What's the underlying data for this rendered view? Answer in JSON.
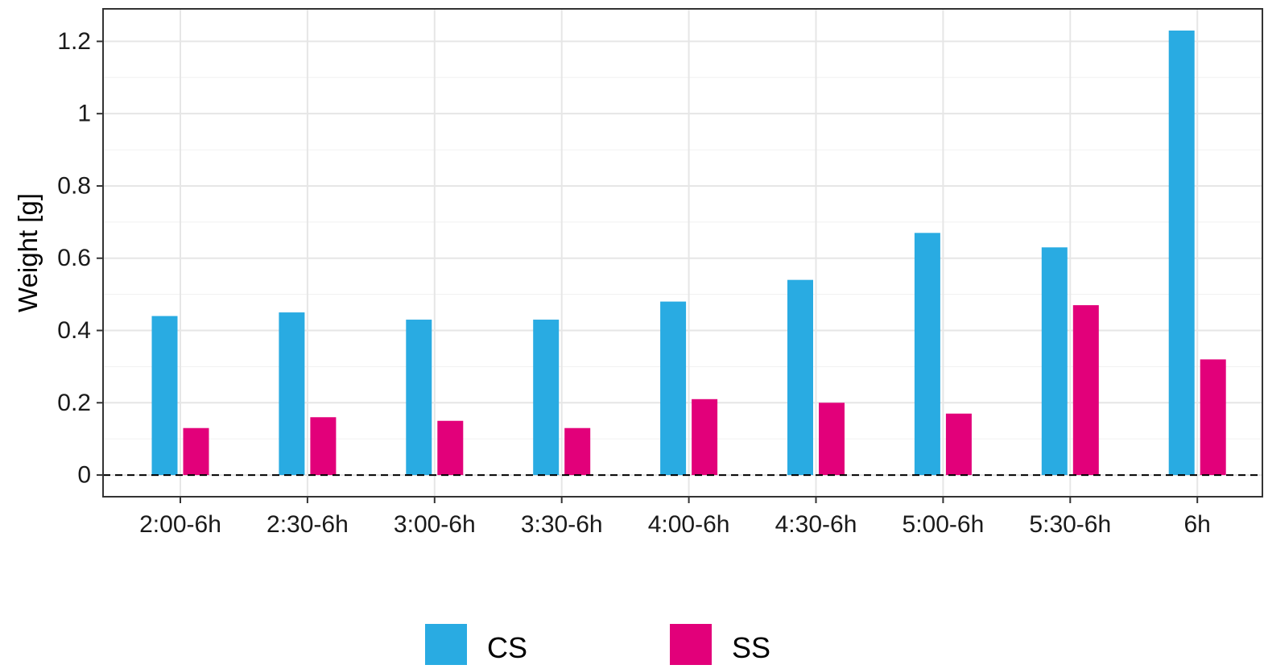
{
  "chart_data": {
    "type": "bar",
    "title": "",
    "xlabel": "",
    "ylabel": "Weight [g]",
    "categories": [
      "2:00-6h",
      "2:30-6h",
      "3:00-6h",
      "3:30-6h",
      "4:00-6h",
      "4:30-6h",
      "5:00-6h",
      "5:30-6h",
      "6h"
    ],
    "series": [
      {
        "name": "CS",
        "color": "#29ABE2",
        "values": [
          0.44,
          0.45,
          0.43,
          0.43,
          0.48,
          0.54,
          0.67,
          0.63,
          1.23
        ]
      },
      {
        "name": "SS",
        "color": "#E2007A",
        "values": [
          0.13,
          0.16,
          0.15,
          0.13,
          0.21,
          0.2,
          0.17,
          0.47,
          0.32
        ]
      }
    ],
    "ylim": [
      -0.06,
      1.29
    ],
    "yticks": [
      0,
      0.2,
      0.4,
      0.6,
      0.8,
      1,
      1.2
    ],
    "ytick_labels": [
      "0",
      "0.2",
      "0.4",
      "0.6",
      "0.8",
      "1",
      "1.2"
    ],
    "y_minor_ticks": [
      0.1,
      0.3,
      0.5,
      0.7,
      0.9,
      1.1
    ],
    "reference_line": {
      "y": 0,
      "style": "dashed"
    },
    "grid": true,
    "legend_position": "bottom"
  }
}
